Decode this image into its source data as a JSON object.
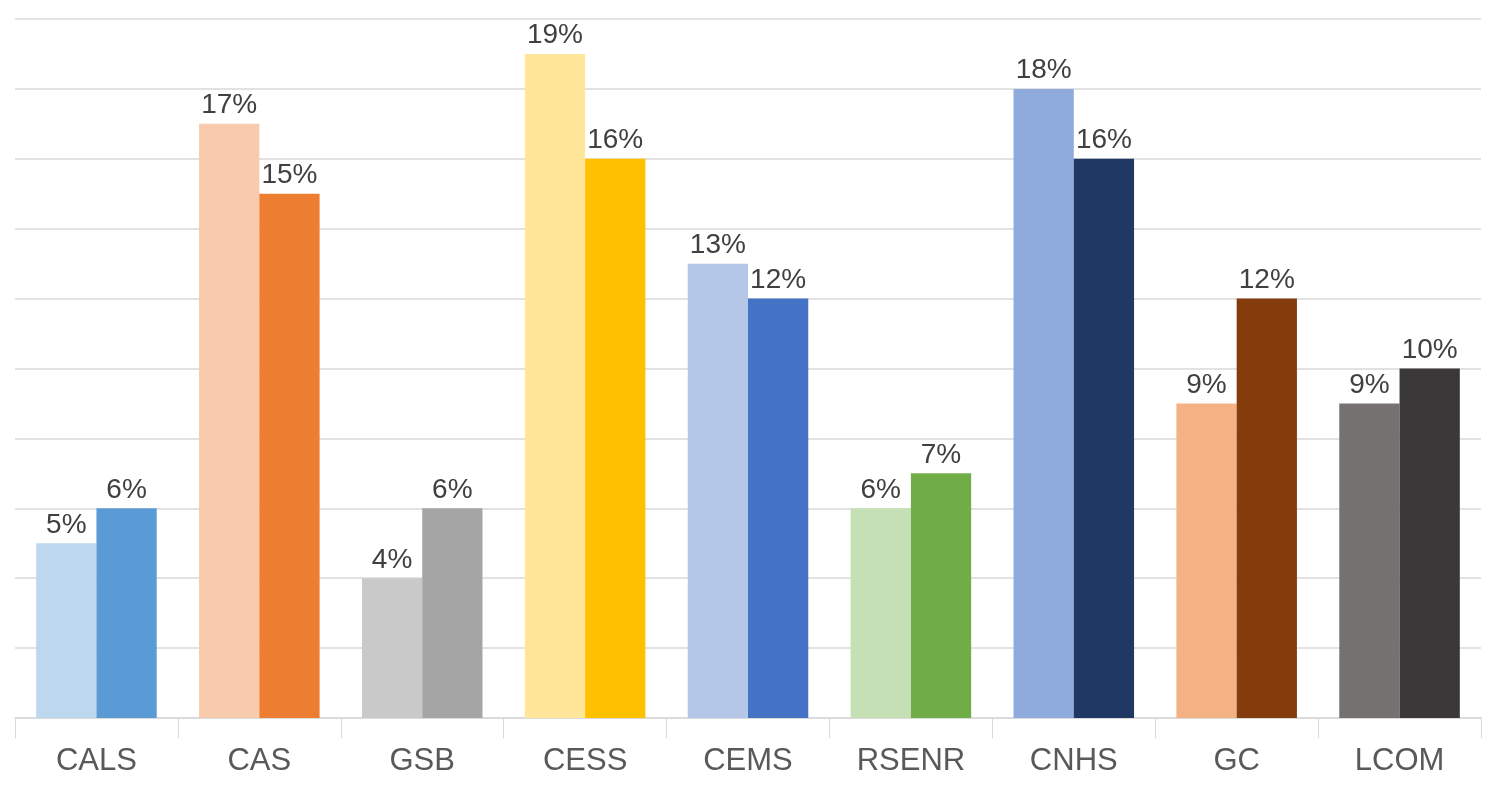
{
  "chart_data": {
    "type": "bar",
    "categories": [
      "CALS",
      "CAS",
      "GSB",
      "CESS",
      "CEMS",
      "RSENR",
      "CNHS",
      "GC",
      "LCOM"
    ],
    "series": [
      {
        "values": [
          5,
          17,
          4,
          19,
          13,
          6,
          18,
          9,
          9
        ],
        "value_labels": [
          "5%",
          "17%",
          "4%",
          "19%",
          "13%",
          "6%",
          "18%",
          "9%",
          "9%"
        ],
        "colors": [
          "#bdd7ee",
          "#f8cbad",
          "#c9c9c9",
          "#ffe699",
          "#b4c7e7",
          "#c5e0b4",
          "#8faadc",
          "#f4b183",
          "#767171"
        ]
      },
      {
        "values": [
          6,
          15,
          6,
          16,
          12,
          7,
          16,
          12,
          10
        ],
        "value_labels": [
          "6%",
          "15%",
          "6%",
          "16%",
          "12%",
          "7%",
          "16%",
          "12%",
          "10%"
        ],
        "colors": [
          "#5b9bd5",
          "#ed7d31",
          "#a5a5a5",
          "#ffc000",
          "#4472c4",
          "#70ad47",
          "#203864",
          "#843c0c",
          "#3a3838"
        ]
      }
    ],
    "ylim": [
      0,
      20
    ],
    "yticks": [
      {
        "value": 0,
        "label": null
      },
      {
        "value": 2,
        "label": null
      },
      {
        "value": 4,
        "label": null
      },
      {
        "value": 6,
        "label": null
      },
      {
        "value": 8,
        "label": null
      },
      {
        "value": 10,
        "label": null
      },
      {
        "value": 12,
        "label": null
      },
      {
        "value": 14,
        "label": null
      },
      {
        "value": 16,
        "label": null
      },
      {
        "value": 18,
        "label": null
      },
      {
        "value": 20,
        "label": null
      }
    ],
    "tick_labels": "x",
    "grid": "y"
  }
}
